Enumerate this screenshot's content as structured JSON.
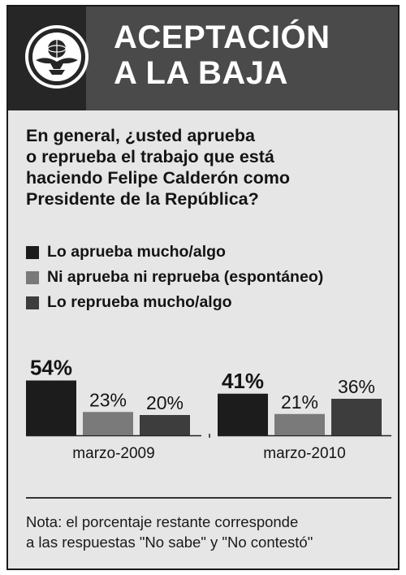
{
  "header": {
    "title_line1": "ACEPTACIÓN",
    "title_line2": "A LA BAJA",
    "logo_icon": "eagle-globe-logo-icon"
  },
  "question": {
    "line1": "En general, ¿usted aprueba",
    "line2": "o reprueba el trabajo que está",
    "line3": "haciendo Felipe Calderón como",
    "line4": "Presidente de la República?"
  },
  "legend": {
    "items": [
      {
        "label": "Lo aprueba mucho/algo",
        "color": "#1c1c1c"
      },
      {
        "label": "Ni aprueba ni reprueba (espontáneo)",
        "color": "#7a7a7a"
      },
      {
        "label": "Lo reprueba mucho/algo",
        "color": "#3d3d3d"
      }
    ]
  },
  "chart_data": {
    "type": "bar",
    "categories": [
      "marzo-2009",
      "marzo-2010"
    ],
    "series": [
      {
        "name": "Lo aprueba mucho/algo",
        "values": [
          54,
          41
        ],
        "labels": [
          "54%",
          "41%"
        ],
        "color": "#1c1c1c"
      },
      {
        "name": "Ni aprueba ni reprueba (espontáneo)",
        "values": [
          23,
          21
        ],
        "labels": [
          "23%",
          "21%"
        ],
        "color": "#7a7a7a"
      },
      {
        "name": "Lo reprueba mucho/algo",
        "values": [
          20,
          36
        ],
        "labels": [
          "20%",
          "36%"
        ],
        "color": "#3d3d3d"
      }
    ],
    "ylim": [
      0,
      60
    ],
    "grid": false,
    "legend": "top"
  },
  "note": {
    "line1": "Nota: el porcentaje restante corresponde",
    "line2": "a las respuestas \"No sabe\" y \"No contestó\""
  }
}
